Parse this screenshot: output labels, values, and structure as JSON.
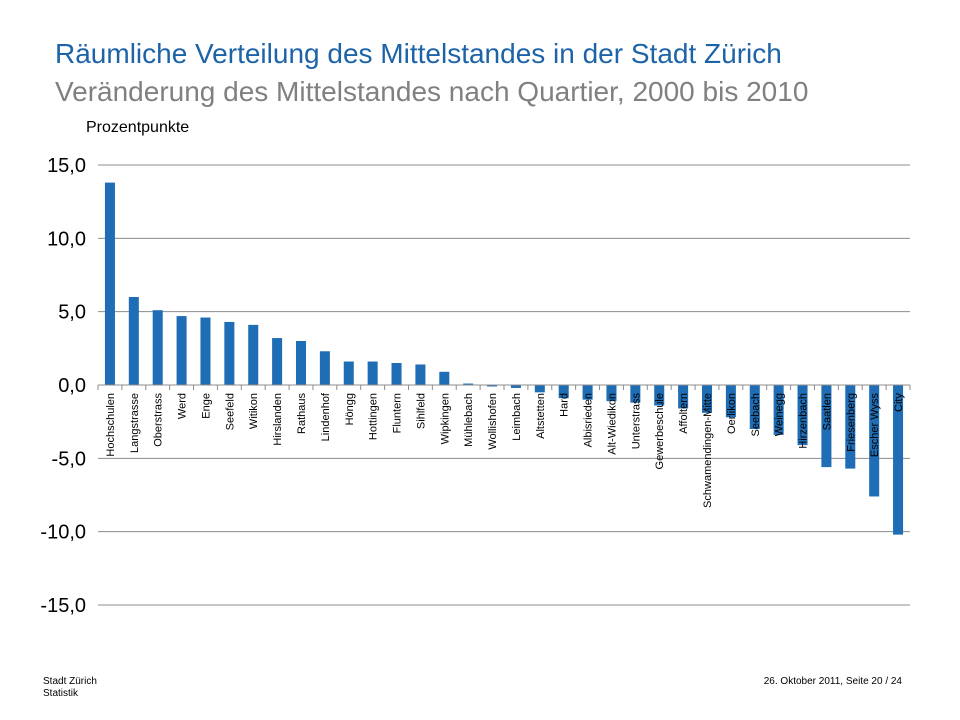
{
  "slide": {
    "title": "Räumliche Verteilung des Mittelstandes in der Stadt Zürich",
    "subtitle": "Veränderung des Mittelstandes nach Quartier, 2000 bis 2010",
    "footer_left_line1": "Stadt Zürich",
    "footer_left_line2": "Statistik",
    "footer_right": "26. Oktober 2011, Seite 20 / 24"
  },
  "chart_data": {
    "type": "bar",
    "title": "Veränderung des Mittelstandes nach Quartier, 2000 bis 2010",
    "ylabel": "Prozentpunkte",
    "xlabel": "",
    "ylim": [
      -15,
      15
    ],
    "yticks": [
      15,
      10,
      5,
      0,
      -5,
      -10,
      -15
    ],
    "ytick_labels": [
      "15,0",
      "10,0",
      "5,0",
      "0,0",
      "-5,0",
      "-10,0",
      "-15,0"
    ],
    "grid": true,
    "bar_color": "#1f6db5",
    "categories": [
      "Hochschulen",
      "Langstrasse",
      "Oberstrass",
      "Werd",
      "Enge",
      "Seefeld",
      "Witikon",
      "Hirslanden",
      "Rathaus",
      "Lindenhof",
      "Höngg",
      "Hottingen",
      "Fluntern",
      "Sihlfeld",
      "Wipkingen",
      "Mühlebach",
      "Wollishofen",
      "Leimbach",
      "Altstetten",
      "Hard",
      "Albisrieden",
      "Alt-Wiedikon",
      "Unterstrass",
      "Gewerbeschule",
      "Affoltern",
      "Schwamendingen-Mitte",
      "Oerlikon",
      "Seebach",
      "Weinegg",
      "Hirzenbach",
      "Saatlen",
      "Friesenberg",
      "Escher Wyss",
      "City"
    ],
    "values": [
      13.8,
      6.0,
      5.1,
      4.7,
      4.6,
      4.3,
      4.1,
      3.2,
      3.0,
      2.3,
      1.6,
      1.6,
      1.5,
      1.4,
      0.9,
      0.1,
      -0.1,
      -0.2,
      -0.5,
      -0.9,
      -1.0,
      -1.1,
      -1.2,
      -1.4,
      -1.6,
      -1.9,
      -2.2,
      -3.0,
      -3.4,
      -4.1,
      -5.6,
      -5.7,
      -7.6,
      -10.2
    ]
  }
}
